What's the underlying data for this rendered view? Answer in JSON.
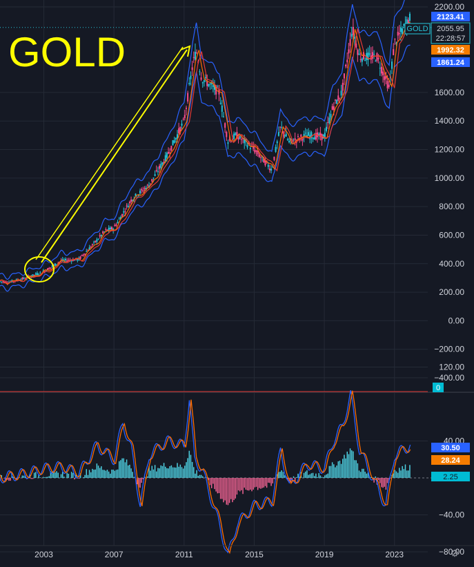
{
  "title": "GOLD",
  "price_axis": {
    "ticks": [
      "2200.00",
      "1600.00",
      "1400.00",
      "1200.00",
      "1000.00",
      "800.00",
      "600.00",
      "400.00",
      "200.00",
      "0.00",
      "−200.00",
      "−400.00"
    ],
    "tick_values": [
      2200,
      1600,
      1400,
      1200,
      1000,
      800,
      600,
      400,
      200,
      0,
      -200,
      -400
    ]
  },
  "badges": {
    "high": "2123.41",
    "symbol": "GOLD",
    "price": "2055.95",
    "countdown": "22:28:57",
    "upper": "1992.32",
    "lower": "1861.24",
    "volume": "0"
  },
  "oscillator_axis": {
    "ticks": [
      "120.00",
      "40.00",
      "−40.00",
      "−80.00"
    ],
    "tick_values": [
      120,
      40,
      -40,
      -80
    ],
    "badges": {
      "a": "30.50",
      "b": "28.24",
      "c": "2.25"
    }
  },
  "time_axis": [
    "2003",
    "2007",
    "2011",
    "2015",
    "2019",
    "2023"
  ],
  "colors": {
    "background": "#151924",
    "candle_up": "#26c6da",
    "candle_down": "#ff4d8d",
    "band": "#2962ff",
    "ma_fast": "#ff6d00",
    "ma_slow": "#e53935",
    "annotation": "#ffff00",
    "badge_blue": "#2962ff",
    "badge_orange": "#f57c00",
    "badge_cyan": "#00bcd4",
    "hist_pos": "#4dd0e1",
    "hist_neg": "#f06292"
  },
  "icons": {
    "settings": "gear-icon"
  },
  "chart_data": [
    {
      "type": "line",
      "series": [
        {
          "x": [
            2000.5,
            2001,
            2002,
            2003,
            2004,
            2005,
            2006,
            2006.5,
            2007,
            2008,
            2008.5,
            2009,
            2010,
            2011,
            2011.5,
            2011.7,
            2012,
            2013,
            2013.5,
            2014,
            2015,
            2016,
            2016.5,
            2017,
            2018,
            2019,
            2019.5,
            2020,
            2020.6,
            2021,
            2022,
            2022.7,
            2023,
            2023.9
          ],
          "values": [
            275,
            270,
            300,
            345,
            420,
            430,
            560,
            630,
            650,
            850,
            900,
            950,
            1150,
            1400,
            1800,
            1895,
            1700,
            1600,
            1260,
            1300,
            1200,
            1060,
            1360,
            1250,
            1300,
            1290,
            1500,
            1600,
            2050,
            1850,
            1850,
            1630,
            1950,
            2123
          ]
        }
      ],
      "xlim": [
        2000.5,
        2024.9
      ],
      "ylim": [
        -420,
        2220
      ]
    },
    {
      "type": "line",
      "series": [
        {
          "x": [
            2000.5,
            2002,
            2003,
            2004,
            2005,
            2006,
            2007,
            2007.5,
            2008,
            2008.5,
            2009,
            2010,
            2011,
            2011.3,
            2011.6,
            2012,
            2013,
            2013.5,
            2014,
            2015,
            2016,
            2016.5,
            2017,
            2018,
            2019,
            2019.5,
            2020,
            2020.5,
            2021,
            2022,
            2022.5,
            2023,
            2023.9
          ],
          "values": [
            0,
            5,
            10,
            12,
            5,
            35,
            20,
            60,
            30,
            -30,
            25,
            40,
            35,
            85,
            20,
            10,
            -50,
            -85,
            -50,
            -30,
            -25,
            30,
            -10,
            15,
            10,
            40,
            55,
            90,
            30,
            -10,
            -30,
            25,
            35
          ]
        }
      ],
      "xlim": [
        2000.5,
        2024.9
      ],
      "ylim": [
        -95,
        130
      ]
    }
  ]
}
